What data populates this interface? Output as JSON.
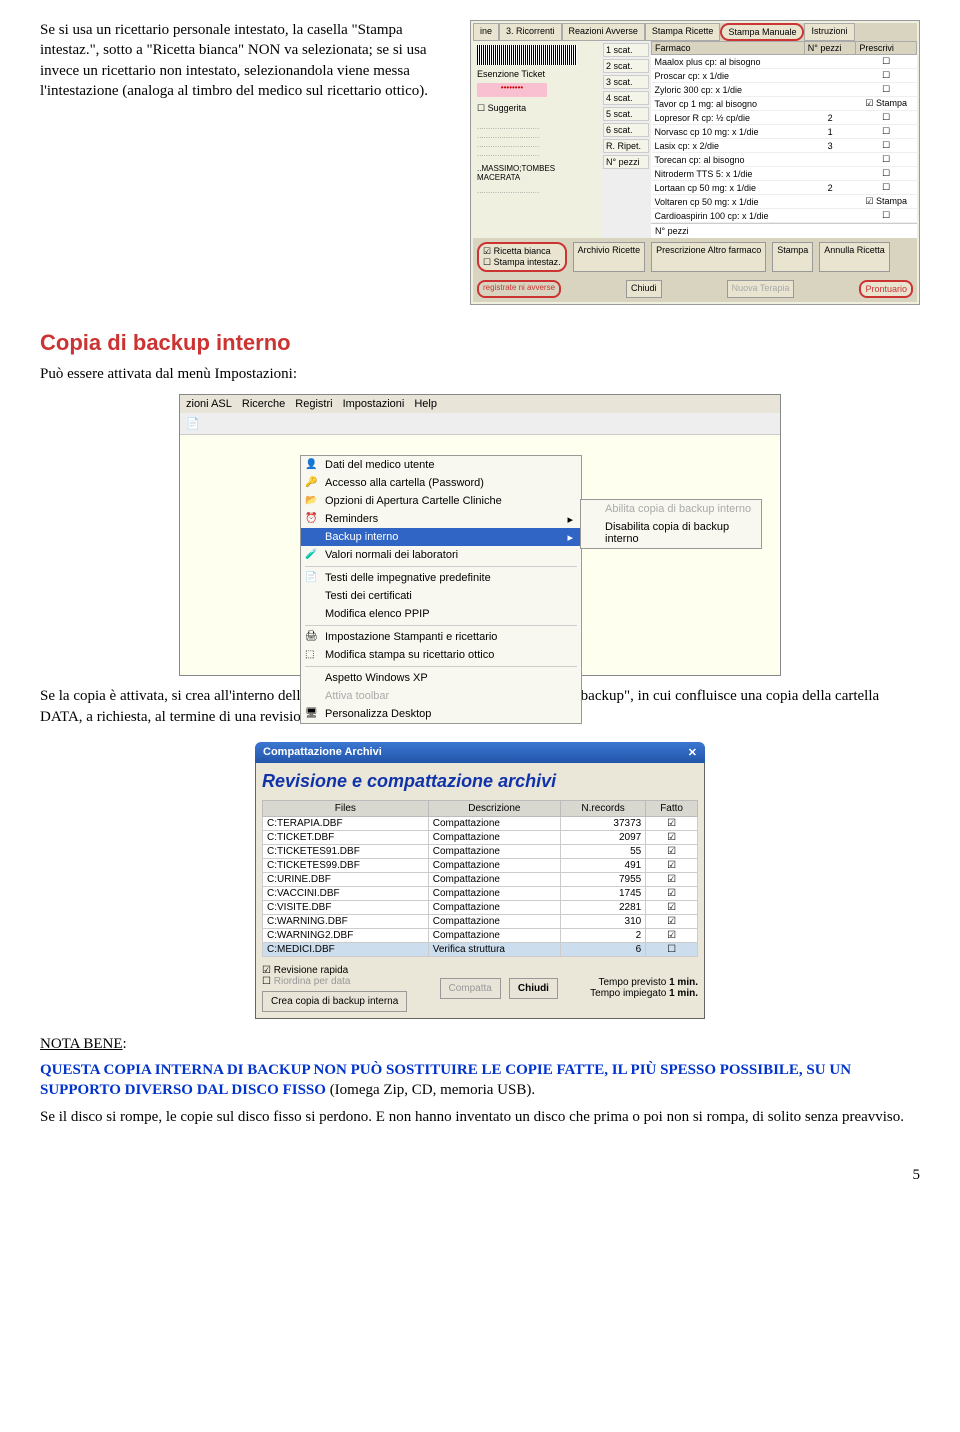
{
  "intro": "Se si usa un ricettario personale intestato, la casella \"Stampa intestaz.\", sotto a \"Ricetta bianca\" NON va selezionata; se si usa invece un ricettario non intestato, selezionandola viene messa l'intestazione (analoga al timbro del medico sul ricettario ottico).",
  "ss1": {
    "tabs": [
      "ine",
      "3. Ricorrenti",
      "Reazioni Avverse",
      "Stampa Ricette",
      "Stampa Manuale",
      "Istruzioni"
    ],
    "active_tab": 4,
    "left_label1": "Esenzione Ticket",
    "left_suggerita": "Suggerita",
    "left_footer": "..MASSIMO;TOMBES\nMACERATA",
    "mid": [
      "1 scat.",
      "2 scat.",
      "3 scat.",
      "4 scat.",
      "5 scat.",
      "6 scat.",
      "R. Ripet.",
      "N° pezzi"
    ],
    "cols": [
      "Farmaco",
      "N° pezzi",
      "Prescrivi"
    ],
    "rows": [
      {
        "f": "Maalox plus cp: al bisogno",
        "n": "",
        "p": "☐"
      },
      {
        "f": "Proscar cp: x 1/die",
        "n": "",
        "p": "☐"
      },
      {
        "f": "Zyloric 300 cp: x 1/die",
        "n": "",
        "p": "☐"
      },
      {
        "f": "Tavor cp 1 mg: al bisogno",
        "n": "",
        "p": "☑ Stampa"
      },
      {
        "f": "Lopresor R cp: ½ cp/die",
        "n": "2",
        "p": "☐"
      },
      {
        "f": "Norvasc cp 10 mg: x 1/die",
        "n": "1",
        "p": "☐"
      },
      {
        "f": "Lasix cp: x 2/die",
        "n": "3",
        "p": "☐"
      },
      {
        "f": "Torecan cp: al bisogno",
        "n": "",
        "p": "☐"
      },
      {
        "f": "Nitroderm TTS 5: x 1/die",
        "n": "",
        "p": "☐"
      },
      {
        "f": "Lortaan cp 50 mg: x 1/die",
        "n": "2",
        "p": "☐"
      },
      {
        "f": "Voltaren cp 50 mg: x 1/die",
        "n": "",
        "p": "☑ Stampa"
      },
      {
        "f": "Cardioaspirin 100 cp: x 1/die",
        "n": "",
        "p": "☐"
      }
    ],
    "bottom_check": [
      "Ricetta bianca",
      "Stampa intestaz."
    ],
    "bottom_btns": [
      "Archivio Ricette",
      "Prescrizione Altro farmaco",
      "Stampa",
      "Annulla Ricetta"
    ],
    "verybottom": [
      "registrate   ni avverse",
      "Chiudi",
      "Nuova Terapia",
      "Prontuario"
    ]
  },
  "section_title": "Copia di backup interno",
  "section_intro": "Può essere attivata dal menù Impostazioni:",
  "menu": {
    "menubar": [
      "zioni ASL",
      "Ricerche",
      "Registri",
      "Impostazioni",
      "Help"
    ],
    "items": [
      {
        "icon": "👤",
        "t": "Dati del medico utente"
      },
      {
        "icon": "🔑",
        "t": "Accesso alla cartella (Password)"
      },
      {
        "icon": "📂",
        "t": "Opzioni di Apertura Cartelle Cliniche"
      },
      {
        "icon": "⏰",
        "t": "Reminders",
        "arrow": true
      },
      {
        "icon": "",
        "t": "Backup interno",
        "arrow": true,
        "hl": true
      },
      {
        "icon": "🧪",
        "t": "Valori normali dei laboratori"
      },
      {
        "sep": true
      },
      {
        "icon": "📄",
        "t": "Testi delle impegnative predefinite"
      },
      {
        "icon": "",
        "t": "Testi dei certificati"
      },
      {
        "icon": "",
        "t": "Modifica elenco PPIP"
      },
      {
        "sep": true
      },
      {
        "icon": "🖨",
        "t": "Impostazione Stampanti e ricettario"
      },
      {
        "icon": "⬚",
        "t": "Modifica stampa su ricettario ottico"
      },
      {
        "sep": true
      },
      {
        "icon": "",
        "t": "Aspetto Windows XP"
      },
      {
        "icon": "",
        "t": "Attiva toolbar",
        "dis": true
      },
      {
        "icon": "🖥",
        "t": "Personalizza Desktop"
      }
    ],
    "submenu": [
      "Abilita copia di backup interno",
      "Disabilita copia di backup interno"
    ]
  },
  "p2": "Se la copia è attivata, si crea all'interno della cartella di Medimax2000 una cartella \"Data_backup\", in cui confluisce una copia della cartella DATA, a richiesta, al termine di una revisione e compattazione degli archivi.",
  "dialog": {
    "title": "Compattazione Archivi",
    "heading": "Revisione e compattazione archivi",
    "cols": [
      "Files",
      "Descrizione",
      "N.records",
      "Fatto"
    ],
    "rows": [
      {
        "f": "C:TERAPIA.DBF",
        "d": "Compattazione",
        "n": "37373",
        "c": "☑"
      },
      {
        "f": "C:TICKET.DBF",
        "d": "Compattazione",
        "n": "2097",
        "c": "☑"
      },
      {
        "f": "C:TICKETES91.DBF",
        "d": "Compattazione",
        "n": "55",
        "c": "☑"
      },
      {
        "f": "C:TICKETES99.DBF",
        "d": "Compattazione",
        "n": "491",
        "c": "☑"
      },
      {
        "f": "C:URINE.DBF",
        "d": "Compattazione",
        "n": "7955",
        "c": "☑"
      },
      {
        "f": "C:VACCINI.DBF",
        "d": "Compattazione",
        "n": "1745",
        "c": "☑"
      },
      {
        "f": "C:VISITE.DBF",
        "d": "Compattazione",
        "n": "2281",
        "c": "☑"
      },
      {
        "f": "C:WARNING.DBF",
        "d": "Compattazione",
        "n": "310",
        "c": "☑"
      },
      {
        "f": "C:WARNING2.DBF",
        "d": "Compattazione",
        "n": "2",
        "c": "☑"
      },
      {
        "f": "C:MEDICI.DBF",
        "d": "Verifica struttura",
        "n": "6",
        "c": "☐"
      }
    ],
    "chk1": "Revisione rapida",
    "chk2": "Riordina per data",
    "btn_backup": "Crea copia di backup interna",
    "btn_compatta": "Compatta",
    "btn_chiudi": "Chiudi",
    "tempo_prev_l": "Tempo previsto",
    "tempo_prev_v": "1 min.",
    "tempo_imp_l": "Tempo impiegato",
    "tempo_imp_v": "1 min."
  },
  "note_label": "NOTA BENE",
  "note_body": "QUESTA COPIA INTERNA DI BACKUP NON PUÒ SOSTITUIRE LE COPIE FATTE, IL PIÙ SPESSO POSSIBILE, SU UN SUPPORTO DIVERSO DAL DISCO FISSO",
  "note_tail": " (Iomega Zip, CD, memoria USB).",
  "note2": "Se il disco si rompe, le copie sul disco fisso si perdono. E non hanno inventato un disco che prima o poi non si rompa, di solito senza preavviso.",
  "pagenum": "5"
}
